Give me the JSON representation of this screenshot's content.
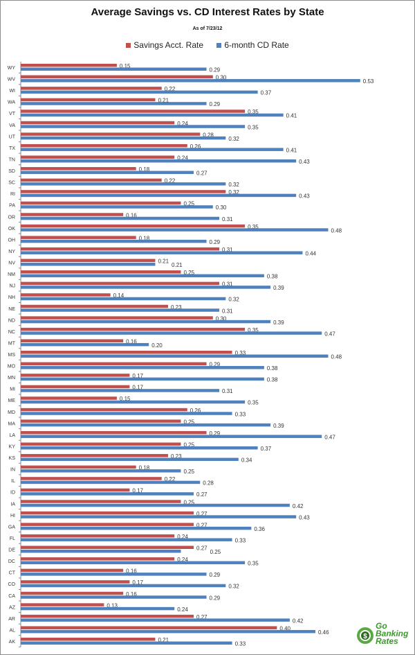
{
  "chart_data": {
    "type": "bar",
    "orientation": "horizontal",
    "title": "Average Savings vs. CD Interest Rates by State",
    "subtitle": "As of 7/23/12",
    "xlabel": "",
    "ylabel": "",
    "xlim": [
      0,
      0.55
    ],
    "grid": false,
    "legend_position": "top",
    "categories": [
      "WY",
      "WV",
      "WI",
      "WA",
      "VT",
      "VA",
      "UT",
      "TX",
      "TN",
      "SD",
      "SC",
      "RI",
      "PA",
      "OR",
      "OK",
      "OH",
      "NY",
      "NV",
      "NM",
      "NJ",
      "NH",
      "NE",
      "ND",
      "NC",
      "MT",
      "MS",
      "MO",
      "MN",
      "MI",
      "ME",
      "MD",
      "MA",
      "LA",
      "KY",
      "KS",
      "IN",
      "IL",
      "ID",
      "IA",
      "HI",
      "GA",
      "FL",
      "DE",
      "DC",
      "CT",
      "CO",
      "CA",
      "AZ",
      "AR",
      "AL",
      "AK"
    ],
    "series": [
      {
        "name": "Savings Acct. Rate",
        "color": "#c0504d",
        "values": [
          0.15,
          0.3,
          0.22,
          0.21,
          0.35,
          0.24,
          0.28,
          0.26,
          0.24,
          0.18,
          0.22,
          0.32,
          0.25,
          0.16,
          0.35,
          0.18,
          0.31,
          0.21,
          0.25,
          0.31,
          0.14,
          0.23,
          0.3,
          0.35,
          0.16,
          0.33,
          0.29,
          0.17,
          0.17,
          0.15,
          0.26,
          0.25,
          0.29,
          0.25,
          0.23,
          0.18,
          0.22,
          0.17,
          0.25,
          0.27,
          0.27,
          0.24,
          0.27,
          0.24,
          0.16,
          0.17,
          0.16,
          0.13,
          0.27,
          0.4,
          0.21
        ]
      },
      {
        "name": "6-month CD Rate",
        "color": "#4f81bd",
        "values": [
          0.29,
          0.53,
          0.37,
          0.29,
          0.41,
          0.35,
          0.32,
          0.41,
          0.43,
          0.27,
          0.32,
          0.43,
          0.3,
          0.31,
          0.48,
          0.29,
          0.44,
          0.21,
          0.38,
          0.39,
          0.32,
          0.31,
          0.39,
          0.47,
          0.2,
          0.48,
          0.38,
          0.38,
          0.31,
          0.35,
          0.33,
          0.39,
          0.47,
          0.37,
          0.34,
          0.25,
          0.28,
          0.27,
          0.42,
          0.43,
          0.36,
          0.33,
          0.25,
          0.35,
          0.29,
          0.32,
          0.29,
          0.24,
          0.42,
          0.46,
          0.33
        ]
      }
    ]
  },
  "logo": {
    "text": "Go Banking Rates",
    "line1": "Go",
    "line2": "Banking",
    "line3": "Rates"
  }
}
